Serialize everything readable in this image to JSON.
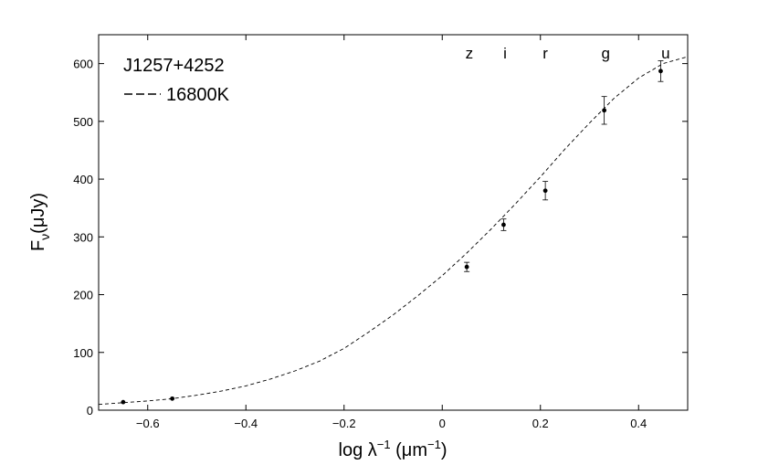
{
  "chart_data": {
    "type": "scatter",
    "xlabel": "log λ⁻¹ (μm⁻¹)",
    "ylabel": "Fν(μJy)",
    "xlim": [
      -0.7,
      0.5
    ],
    "ylim": [
      0,
      650
    ],
    "x_ticks": [
      -0.6,
      -0.4,
      -0.2,
      0,
      0.2,
      0.4
    ],
    "x_tick_labels": [
      "−0.6",
      "−0.4",
      "−0.2",
      "0",
      "0.2",
      "0.4"
    ],
    "y_ticks": [
      0,
      100,
      200,
      300,
      400,
      500,
      600
    ],
    "y_tick_labels": [
      "0",
      "100",
      "200",
      "300",
      "400",
      "500",
      "600"
    ],
    "grid": false,
    "legend": {
      "object": "J1257+4252",
      "model_label": "16800K",
      "placement": "top-left"
    },
    "band_labels": [
      {
        "label": "z",
        "x": 0.055
      },
      {
        "label": "i",
        "x": 0.128
      },
      {
        "label": "r",
        "x": 0.21
      },
      {
        "label": "g",
        "x": 0.333
      },
      {
        "label": "u",
        "x": 0.455
      }
    ],
    "points": [
      {
        "x": -0.65,
        "y": 14,
        "err": 0
      },
      {
        "x": -0.55,
        "y": 20,
        "err": 0
      },
      {
        "x": 0.05,
        "y": 248,
        "err": 8
      },
      {
        "x": 0.125,
        "y": 321,
        "err": 10
      },
      {
        "x": 0.21,
        "y": 380,
        "err": 16
      },
      {
        "x": 0.33,
        "y": 519,
        "err": 24
      },
      {
        "x": 0.445,
        "y": 587,
        "err": 18
      }
    ],
    "model_curve": {
      "style": "dashed",
      "x": [
        -0.7,
        -0.65,
        -0.6,
        -0.55,
        -0.5,
        -0.45,
        -0.4,
        -0.35,
        -0.3,
        -0.25,
        -0.2,
        -0.15,
        -0.1,
        -0.05,
        0,
        0.05,
        0.1,
        0.15,
        0.2,
        0.25,
        0.3,
        0.35,
        0.4,
        0.45,
        0.5
      ],
      "y": [
        10,
        13,
        16,
        20,
        26,
        33,
        42,
        54,
        68,
        85,
        107,
        135,
        165,
        198,
        233,
        272,
        314,
        358,
        404,
        452,
        497,
        540,
        575,
        600,
        612
      ]
    }
  }
}
